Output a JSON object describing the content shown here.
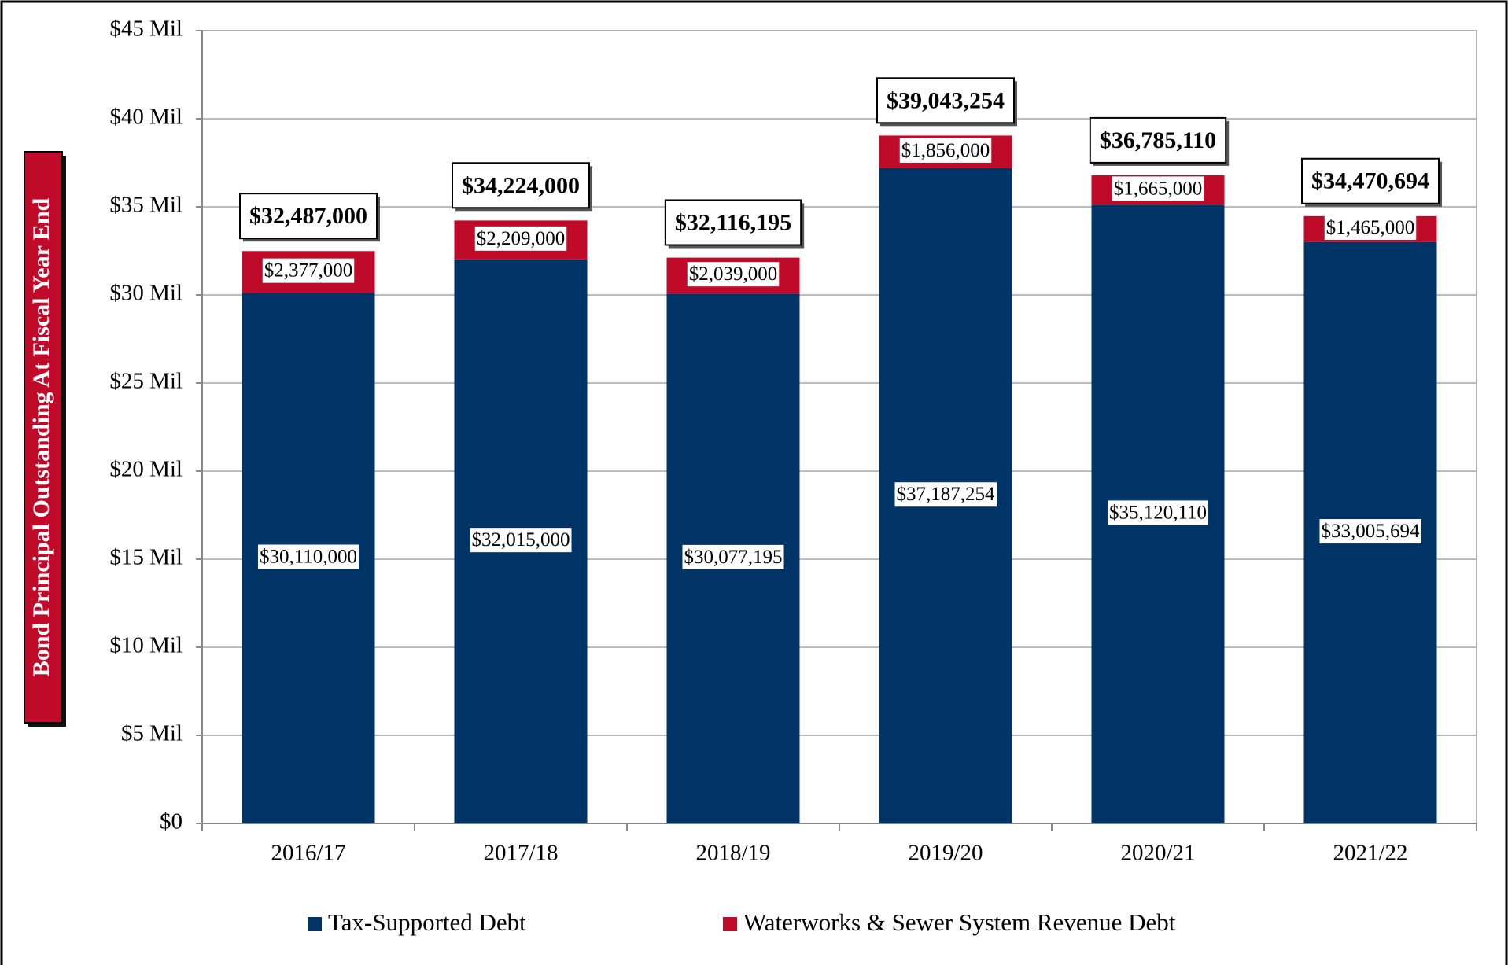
{
  "chart_data": {
    "type": "stacked_bar",
    "y_label": "Bond Principal Outstanding At Fiscal Year End",
    "categories": [
      "2016/17",
      "2017/18",
      "2018/19",
      "2019/20",
      "2020/21",
      "2021/22"
    ],
    "series": [
      {
        "name": "Tax-Supported Debt",
        "color": "#003366",
        "values": [
          30110000,
          32015000,
          30077195,
          37187254,
          35120110,
          33005694
        ],
        "value_labels": [
          "$30,110,000",
          "$32,015,000",
          "$30,077,195",
          "$37,187,254",
          "$35,120,110",
          "$33,005,694"
        ]
      },
      {
        "name": "Waterworks & Sewer System Revenue Debt",
        "color": "#c00a2a",
        "values": [
          2377000,
          2209000,
          2039000,
          1856000,
          1665000,
          1465000
        ],
        "value_labels": [
          "$2,377,000",
          "$2,209,000",
          "$2,039,000",
          "$1,856,000",
          "$1,665,000",
          "$1,465,000"
        ]
      }
    ],
    "totals": [
      32487000,
      34224000,
      32116195,
      39043254,
      36785110,
      34470694
    ],
    "total_labels": [
      "$32,487,000",
      "$34,224,000",
      "$32,116,195",
      "$39,043,254",
      "$36,785,110",
      "$34,470,694"
    ],
    "ylim": [
      0,
      45000000
    ],
    "yticks": [
      {
        "value": 0,
        "label": "$0"
      },
      {
        "value": 5000000,
        "label": "$5 Mil"
      },
      {
        "value": 10000000,
        "label": "$10 Mil"
      },
      {
        "value": 15000000,
        "label": "$15 Mil"
      },
      {
        "value": 20000000,
        "label": "$20 Mil"
      },
      {
        "value": 25000000,
        "label": "$25 Mil"
      },
      {
        "value": 30000000,
        "label": "$30 Mil"
      },
      {
        "value": 35000000,
        "label": "$35 Mil"
      },
      {
        "value": 40000000,
        "label": "$40 Mil"
      },
      {
        "value": 45000000,
        "label": "$45 Mil"
      }
    ],
    "grid": true
  }
}
